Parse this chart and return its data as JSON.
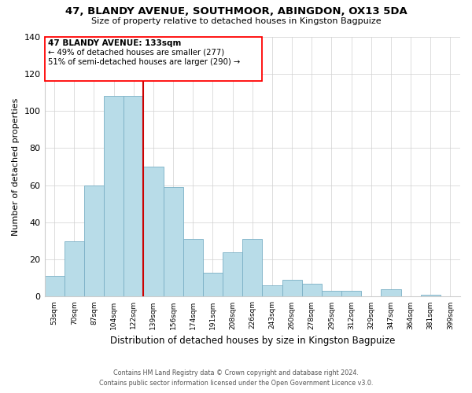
{
  "title": "47, BLANDY AVENUE, SOUTHMOOR, ABINGDON, OX13 5DA",
  "subtitle": "Size of property relative to detached houses in Kingston Bagpuize",
  "xlabel": "Distribution of detached houses by size in Kingston Bagpuize",
  "ylabel": "Number of detached properties",
  "footer_line1": "Contains HM Land Registry data © Crown copyright and database right 2024.",
  "footer_line2": "Contains public sector information licensed under the Open Government Licence v3.0.",
  "bar_labels": [
    "53sqm",
    "70sqm",
    "87sqm",
    "104sqm",
    "122sqm",
    "139sqm",
    "156sqm",
    "174sqm",
    "191sqm",
    "208sqm",
    "226sqm",
    "243sqm",
    "260sqm",
    "278sqm",
    "295sqm",
    "312sqm",
    "329sqm",
    "347sqm",
    "364sqm",
    "381sqm",
    "399sqm"
  ],
  "bar_values": [
    11,
    30,
    60,
    108,
    108,
    70,
    59,
    31,
    13,
    24,
    31,
    6,
    9,
    7,
    3,
    3,
    0,
    4,
    0,
    1,
    0
  ],
  "bar_color": "#b8dce8",
  "bar_edge_color": "#7aafc5",
  "vline_color": "#cc0000",
  "ylim": [
    0,
    140
  ],
  "yticks": [
    0,
    20,
    40,
    60,
    80,
    100,
    120,
    140
  ],
  "annotation_title": "47 BLANDY AVENUE: 133sqm",
  "annotation_line1": "← 49% of detached houses are smaller (277)",
  "annotation_line2": "51% of semi-detached houses are larger (290) →"
}
